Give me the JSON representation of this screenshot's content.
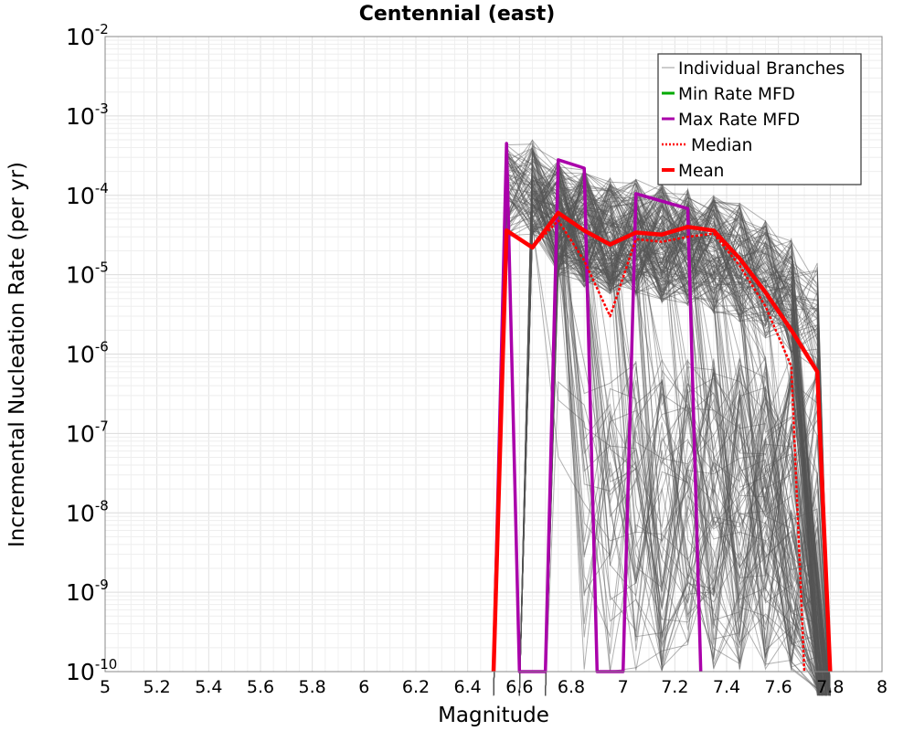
{
  "chart_data": {
    "type": "line",
    "title": "Centennial (east)",
    "xlabel": "Magnitude",
    "ylabel": "Incremental Nucleation Rate (per yr)",
    "xlim": [
      5,
      8
    ],
    "ylim": [
      1e-10,
      0.01
    ],
    "yscale": "log",
    "grid": true,
    "legend_position": "top-right",
    "x_ticks": [
      "5",
      "5.2",
      "5.4",
      "5.6",
      "5.8",
      "6",
      "6.2",
      "6.4",
      "6.6",
      "6.8",
      "7",
      "7.2",
      "7.4",
      "7.6",
      "7.8",
      "8"
    ],
    "y_tick_exponents": [
      "-10",
      "-9",
      "-8",
      "-7",
      "-6",
      "-5",
      "-4",
      "-3",
      "-2"
    ],
    "y_tick_base": "10",
    "legend": [
      "Individual Branches",
      "Min Rate MFD",
      "Max Rate MFD",
      "Median",
      "Mean"
    ],
    "colors": {
      "branches": "#555555",
      "min": "#00aa00",
      "max": "#aa00aa",
      "median": "#ff0000",
      "mean": "#ff0000"
    },
    "series": [
      {
        "name": "Max Rate MFD",
        "x": [
          6.5,
          6.55,
          6.6,
          6.7,
          6.75,
          6.85,
          6.9,
          7.0,
          7.05,
          7.25,
          7.3
        ],
        "y": [
          1e-10,
          0.00045,
          1e-10,
          1e-10,
          0.00028,
          0.00022,
          1e-10,
          1e-10,
          0.000105,
          6.8e-05,
          1e-10
        ]
      },
      {
        "name": "Median",
        "x": [
          6.5,
          6.55,
          6.65,
          6.75,
          6.85,
          6.95,
          7.05,
          7.15,
          7.25,
          7.35,
          7.45,
          7.55,
          7.65,
          7.7
        ],
        "y": [
          1e-10,
          3.5e-05,
          2.2e-05,
          4.8e-05,
          1.5e-05,
          3e-06,
          2.8e-05,
          2.6e-05,
          3e-05,
          3.3e-05,
          1.3e-05,
          4e-06,
          7e-07,
          1e-10
        ]
      },
      {
        "name": "Mean",
        "x": [
          6.5,
          6.55,
          6.65,
          6.75,
          6.85,
          6.95,
          7.05,
          7.15,
          7.25,
          7.35,
          7.45,
          7.55,
          7.65,
          7.75,
          7.8
        ],
        "y": [
          1e-10,
          3.6e-05,
          2.2e-05,
          6e-05,
          3.6e-05,
          2.4e-05,
          3.4e-05,
          3.2e-05,
          4e-05,
          3.6e-05,
          1.6e-05,
          6e-06,
          2e-06,
          6e-07,
          1e-10
        ]
      }
    ],
    "branch_envelope": {
      "x": [
        6.55,
        6.65,
        6.75,
        6.85,
        6.95,
        7.05,
        7.15,
        7.25,
        7.35,
        7.45,
        7.55,
        7.65,
        7.75
      ],
      "y_max": [
        0.00045,
        0.0005,
        0.00028,
        0.00022,
        0.00018,
        0.00016,
        0.00014,
        0.00012,
        0.0001,
        8e-05,
        5e-05,
        3e-05,
        1.5e-05
      ]
    }
  }
}
